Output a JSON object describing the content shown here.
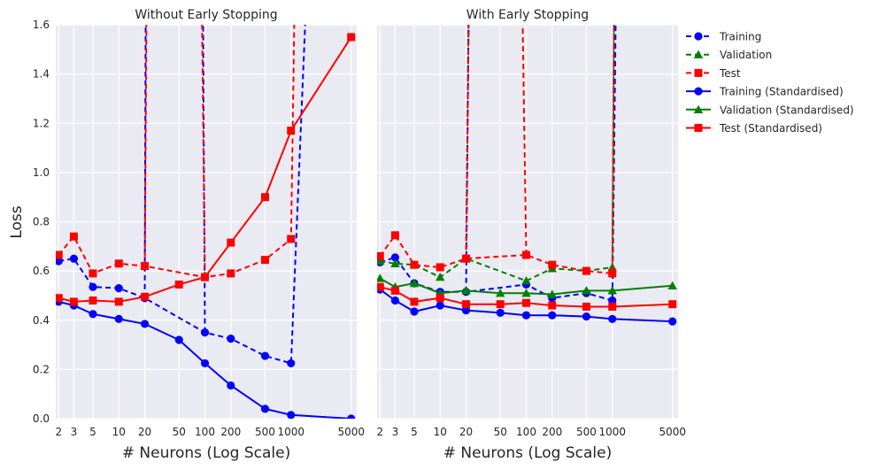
{
  "chart_data": {
    "type": "line",
    "ylabel": "Loss",
    "xlabel": "# Neurons (Log Scale)",
    "xscale": "log",
    "ylim": [
      0.0,
      1.6
    ],
    "yticks": [
      0.0,
      0.2,
      0.4,
      0.6,
      0.8,
      1.0,
      1.2,
      1.4,
      1.6
    ],
    "xticks": [
      2,
      3,
      5,
      10,
      20,
      50,
      100,
      200,
      500,
      1000,
      5000
    ],
    "legend_position": "right-outside",
    "grid": true,
    "legend": [
      {
        "label": "Training",
        "color": "#0000ff",
        "dash": true,
        "marker": "circle"
      },
      {
        "label": "Validation",
        "color": "#008000",
        "dash": true,
        "marker": "triangle"
      },
      {
        "label": "Test",
        "color": "#ff0000",
        "dash": true,
        "marker": "square"
      },
      {
        "label": "Training (Standardised)",
        "color": "#0000ff",
        "dash": false,
        "marker": "circle"
      },
      {
        "label": "Validation (Standardised)",
        "color": "#008000",
        "dash": false,
        "marker": "triangle"
      },
      {
        "label": "Test (Standardised)",
        "color": "#ff0000",
        "dash": false,
        "marker": "square"
      }
    ],
    "panels": [
      {
        "title": "Without Early Stopping",
        "series": [
          {
            "name": "Training",
            "color": "#0000ff",
            "dash": true,
            "marker": "circle",
            "x": [
              2,
              3,
              5,
              10,
              20,
              100,
              200,
              500,
              1000,
              1500
            ],
            "y": [
              0.64,
              0.65,
              0.535,
              0.53,
              0.49,
              0.35,
              0.325,
              0.255,
              0.225,
              1.7
            ],
            "spikes": [
              {
                "from_x": 20,
                "to_x": 20.5,
                "y_from": 0.49
              },
              {
                "from_x": 100,
                "to_x": 95,
                "y_from": 0.35
              }
            ]
          },
          {
            "name": "Test",
            "color": "#ff0000",
            "dash": true,
            "marker": "square",
            "x": [
              2,
              3,
              5,
              10,
              20,
              100,
              200,
              500,
              1000,
              1100
            ],
            "y": [
              0.665,
              0.74,
              0.59,
              0.63,
              0.62,
              0.575,
              0.59,
              0.645,
              0.73,
              1.7
            ],
            "spikes": [
              {
                "from_x": 20,
                "to_x": 21,
                "y_from": 0.62
              },
              {
                "from_x": 100,
                "to_x": 92,
                "y_from": 0.575
              }
            ]
          },
          {
            "name": "Training (Standardised)",
            "color": "#0000ff",
            "dash": false,
            "marker": "circle",
            "x": [
              2,
              3,
              5,
              10,
              20,
              50,
              100,
              200,
              500,
              1000,
              5000
            ],
            "y": [
              0.475,
              0.46,
              0.425,
              0.405,
              0.385,
              0.32,
              0.225,
              0.135,
              0.04,
              0.015,
              0.0
            ]
          },
          {
            "name": "Test (Standardised)",
            "color": "#ff0000",
            "dash": false,
            "marker": "square",
            "x": [
              2,
              3,
              5,
              10,
              20,
              50,
              100,
              200,
              500,
              1000,
              5000
            ],
            "y": [
              0.49,
              0.475,
              0.48,
              0.475,
              0.495,
              0.545,
              0.575,
              0.715,
              0.9,
              1.17,
              1.55
            ]
          }
        ]
      },
      {
        "title": "With Early Stopping",
        "series": [
          {
            "name": "Training",
            "color": "#0000ff",
            "dash": true,
            "marker": "circle",
            "x": [
              2,
              3,
              5,
              10,
              20,
              100,
              200,
              500,
              1000,
              1100
            ],
            "y": [
              0.635,
              0.655,
              0.55,
              0.515,
              0.515,
              0.545,
              0.49,
              0.51,
              0.48,
              1.7
            ],
            "spikes": [
              {
                "from_x": 20,
                "to_x": 21.5,
                "y_from": 0.515
              }
            ]
          },
          {
            "name": "Validation",
            "color": "#008000",
            "dash": true,
            "marker": "triangle",
            "x": [
              2,
              3,
              5,
              10,
              20,
              100,
              200,
              500,
              1000,
              1050
            ],
            "y": [
              0.64,
              0.63,
              0.625,
              0.575,
              0.65,
              0.56,
              0.61,
              0.6,
              0.615,
              1.7
            ],
            "spikes": [
              {
                "from_x": 20,
                "to_x": 21.5,
                "y_from": 0.65
              }
            ]
          },
          {
            "name": "Test",
            "color": "#ff0000",
            "dash": true,
            "marker": "square",
            "x": [
              2,
              3,
              5,
              10,
              20,
              100,
              200,
              500,
              1000,
              1050
            ],
            "y": [
              0.66,
              0.745,
              0.625,
              0.615,
              0.65,
              0.665,
              0.625,
              0.6,
              0.59,
              1.7
            ],
            "spikes": [
              {
                "from_x": 20,
                "to_x": 21.5,
                "y_from": 0.65
              },
              {
                "from_x": 100,
                "to_x": 90,
                "y_from": 0.665
              }
            ]
          },
          {
            "name": "Training (Standardised)",
            "color": "#0000ff",
            "dash": false,
            "marker": "circle",
            "x": [
              2,
              3,
              5,
              10,
              20,
              50,
              100,
              200,
              500,
              1000,
              5000
            ],
            "y": [
              0.525,
              0.48,
              0.435,
              0.46,
              0.44,
              0.43,
              0.42,
              0.42,
              0.415,
              0.405,
              0.395
            ]
          },
          {
            "name": "Validation (Standardised)",
            "color": "#008000",
            "dash": false,
            "marker": "triangle",
            "x": [
              2,
              3,
              5,
              10,
              20,
              50,
              100,
              200,
              500,
              1000,
              5000
            ],
            "y": [
              0.57,
              0.535,
              0.55,
              0.51,
              0.52,
              0.51,
              0.51,
              0.505,
              0.52,
              0.52,
              0.54
            ]
          },
          {
            "name": "Test (Standardised)",
            "color": "#ff0000",
            "dash": false,
            "marker": "square",
            "x": [
              2,
              3,
              5,
              10,
              20,
              50,
              100,
              200,
              500,
              1000,
              5000
            ],
            "y": [
              0.535,
              0.52,
              0.475,
              0.49,
              0.465,
              0.465,
              0.47,
              0.46,
              0.455,
              0.455,
              0.465
            ]
          }
        ]
      }
    ]
  }
}
